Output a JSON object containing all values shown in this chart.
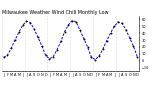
{
  "title": "Milwaukee Weather Wind Chill Monthly Low",
  "months": [
    "J",
    "F",
    "M",
    "A",
    "M",
    "J",
    "J",
    "A",
    "S",
    "O",
    "N",
    "D",
    "J",
    "F",
    "M",
    "A",
    "M",
    "J",
    "J",
    "A",
    "S",
    "O",
    "N",
    "D",
    "J",
    "F",
    "M",
    "A",
    "M",
    "J",
    "J",
    "A",
    "S",
    "O",
    "N",
    "D"
  ],
  "values": [
    5,
    8,
    18,
    30,
    41,
    51,
    57,
    55,
    46,
    34,
    22,
    8,
    3,
    6,
    16,
    28,
    42,
    52,
    58,
    56,
    44,
    32,
    20,
    5,
    2,
    7,
    17,
    29,
    40,
    50,
    56,
    54,
    45,
    33,
    21,
    6
  ],
  "line_color": "#0000cc",
  "marker_color": "#000000",
  "grid_color": "#bbbbbb",
  "background_color": "#ffffff",
  "ylim": [
    -15,
    65
  ],
  "yticks": [
    -10,
    0,
    10,
    20,
    30,
    40,
    50,
    60
  ],
  "title_fontsize": 3.5,
  "tick_fontsize": 2.5
}
